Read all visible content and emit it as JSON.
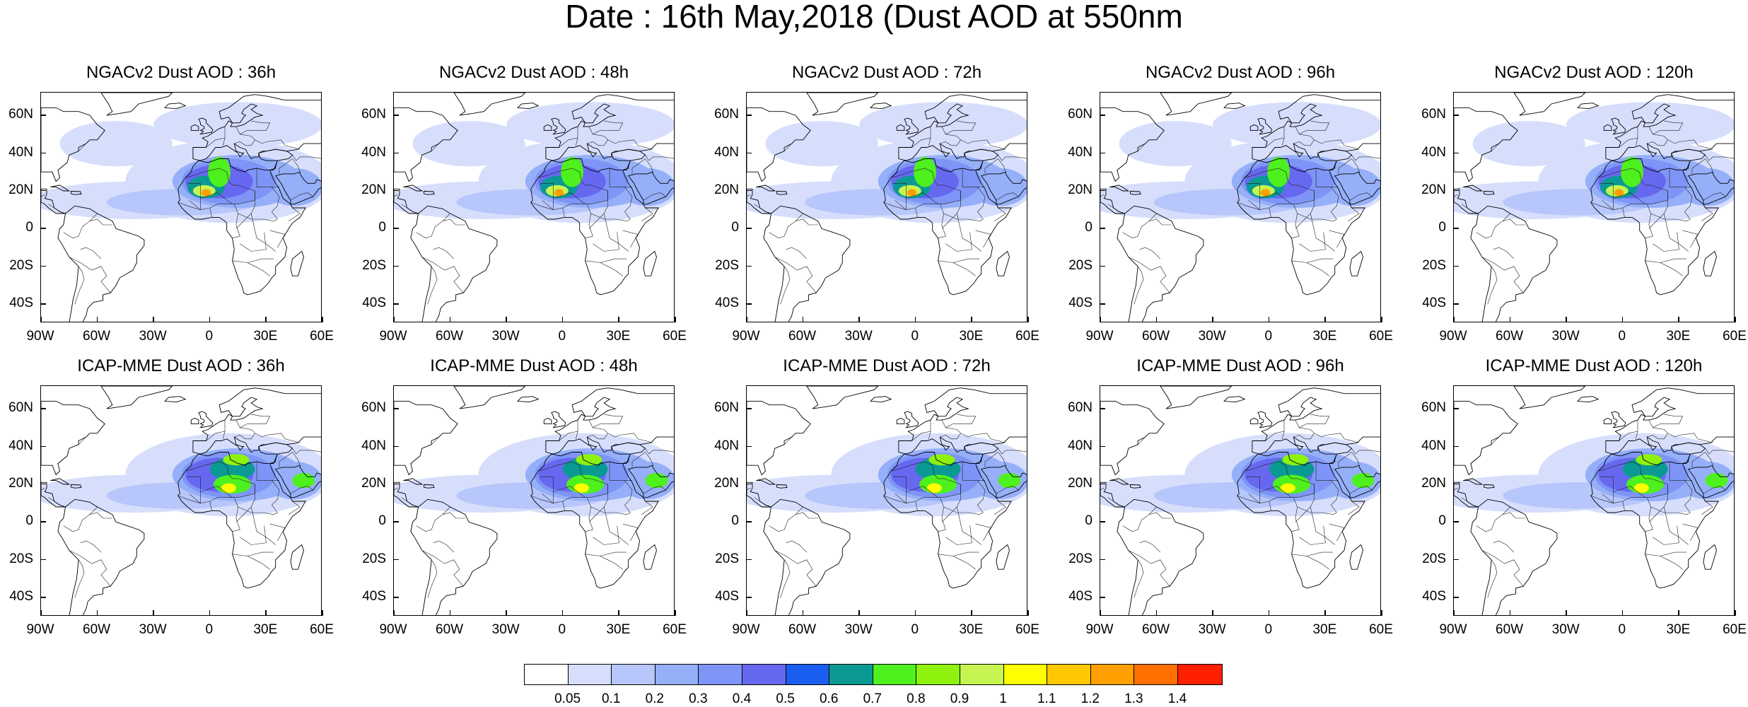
{
  "title": "Date : 16th May,2018 (Dust AOD at 550nm",
  "lat_labels": [
    "60N",
    "40N",
    "20N",
    "0",
    "20S",
    "40S"
  ],
  "lon_labels": [
    "90W",
    "60W",
    "30W",
    "0",
    "30E",
    "60E"
  ],
  "panels": [
    {
      "title": "NGACv2 Dust AOD : 36h"
    },
    {
      "title": "NGACv2 Dust AOD : 48h"
    },
    {
      "title": "NGACv2 Dust AOD : 72h"
    },
    {
      "title": "NGACv2 Dust AOD : 96h"
    },
    {
      "title": "NGACv2 Dust AOD : 120h"
    },
    {
      "title": "ICAP-MME Dust AOD : 36h"
    },
    {
      "title": "ICAP-MME Dust AOD : 48h"
    },
    {
      "title": "ICAP-MME Dust AOD : 72h"
    },
    {
      "title": "ICAP-MME Dust AOD : 96h"
    },
    {
      "title": "ICAP-MME Dust AOD : 120h"
    }
  ],
  "colorbar": {
    "colors": [
      "#ffffff",
      "#d6defc",
      "#b7c6fb",
      "#96aff9",
      "#7e95f7",
      "#6768f0",
      "#1b5ef2",
      "#0a9993",
      "#4ef01e",
      "#8ef20e",
      "#c6f552",
      "#ffff00",
      "#ffc800",
      "#ffa000",
      "#ff7000",
      "#ff2000"
    ],
    "labels": [
      "0.05",
      "0.1",
      "0.2",
      "0.3",
      "0.4",
      "0.5",
      "0.6",
      "0.7",
      "0.8",
      "0.9",
      "1",
      "1.1",
      "1.2",
      "1.3",
      "1.4"
    ]
  }
}
